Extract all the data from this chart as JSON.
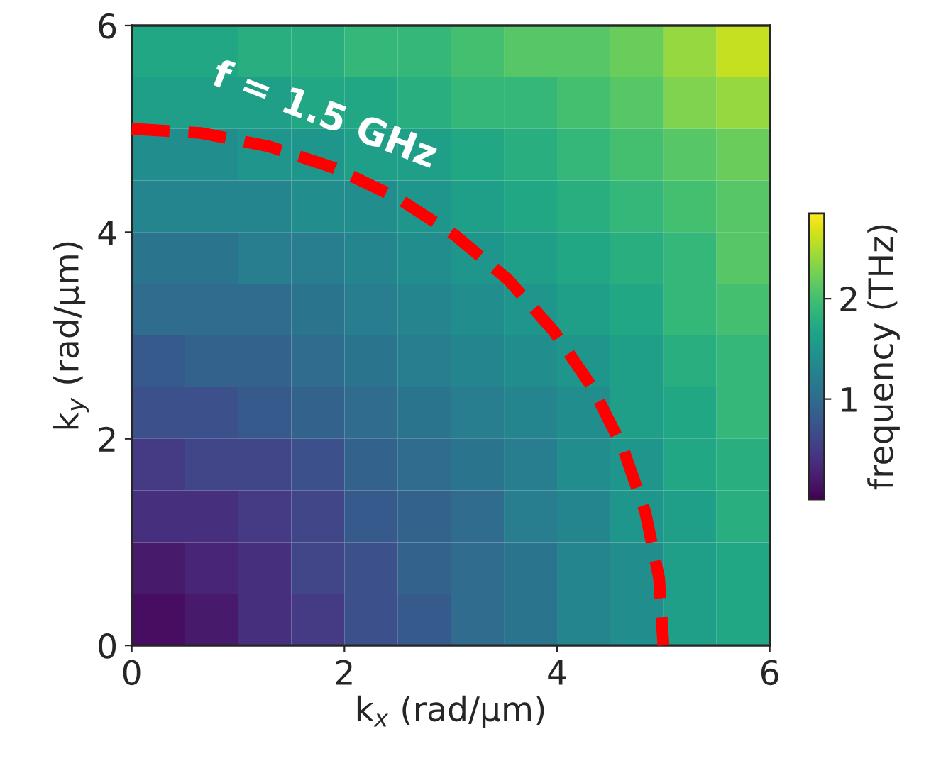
{
  "chart_data": {
    "type": "heatmap",
    "x": [
      0.25,
      0.75,
      1.25,
      1.75,
      2.25,
      2.75,
      3.25,
      3.75,
      4.25,
      4.75,
      5.25,
      5.75
    ],
    "y": [
      5.75,
      5.25,
      4.75,
      4.25,
      3.75,
      3.25,
      2.75,
      2.25,
      1.75,
      1.25,
      0.75,
      0.25
    ],
    "cells": [
      [
        1.7,
        1.7,
        1.8,
        1.8,
        1.9,
        1.9,
        2.0,
        2.1,
        2.1,
        2.2,
        2.4,
        2.6
      ],
      [
        1.6,
        1.6,
        1.6,
        1.7,
        1.7,
        1.8,
        1.9,
        1.9,
        2.0,
        2.1,
        2.3,
        2.4
      ],
      [
        1.4,
        1.4,
        1.5,
        1.5,
        1.6,
        1.6,
        1.7,
        1.8,
        1.9,
        2.0,
        2.1,
        2.2
      ],
      [
        1.3,
        1.3,
        1.3,
        1.4,
        1.4,
        1.5,
        1.6,
        1.7,
        1.8,
        1.9,
        2.0,
        2.1
      ],
      [
        1.1,
        1.1,
        1.2,
        1.2,
        1.3,
        1.4,
        1.5,
        1.6,
        1.7,
        1.8,
        1.9,
        2.1
      ],
      [
        1.0,
        1.0,
        1.0,
        1.1,
        1.2,
        1.3,
        1.4,
        1.5,
        1.6,
        1.7,
        1.9,
        2.0
      ],
      [
        0.8,
        0.9,
        0.9,
        1.0,
        1.1,
        1.2,
        1.3,
        1.4,
        1.5,
        1.6,
        1.8,
        1.9
      ],
      [
        0.7,
        0.7,
        0.8,
        0.9,
        1.0,
        1.1,
        1.2,
        1.3,
        1.4,
        1.6,
        1.7,
        1.9
      ],
      [
        0.5,
        0.6,
        0.6,
        0.7,
        0.9,
        1.0,
        1.1,
        1.2,
        1.4,
        1.5,
        1.7,
        1.8
      ],
      [
        0.4,
        0.4,
        0.5,
        0.6,
        0.8,
        0.9,
        1.0,
        1.2,
        1.3,
        1.5,
        1.6,
        1.8
      ],
      [
        0.2,
        0.3,
        0.4,
        0.6,
        0.7,
        0.9,
        1.0,
        1.1,
        1.3,
        1.4,
        1.6,
        1.7
      ],
      [
        0.1,
        0.2,
        0.4,
        0.5,
        0.7,
        0.8,
        1.0,
        1.1,
        1.3,
        1.4,
        1.6,
        1.7
      ]
    ],
    "clim": [
      0,
      2.85
    ],
    "cticks": [
      1,
      2
    ],
    "clabel": "frequency (THz)",
    "xlabel": "k$_{x}$ (rad/μm)",
    "ylabel": "k$_{y}$ (rad/μm)",
    "xlim": [
      0,
      6
    ],
    "ylim": [
      0,
      6
    ],
    "xticks": [
      0,
      2,
      4,
      6
    ],
    "yticks": [
      0,
      2,
      4,
      6
    ],
    "grid": false,
    "series": [
      {
        "type": "line",
        "color": "#ff0000",
        "line_style": "dashed",
        "x": [
          0,
          0.65,
          1.29,
          1.91,
          2.5,
          3.04,
          3.54,
          3.97,
          4.33,
          4.62,
          4.83,
          4.96,
          5
        ],
        "values": [
          5,
          4.96,
          4.83,
          4.62,
          4.33,
          3.97,
          3.54,
          3.04,
          2.5,
          1.91,
          1.29,
          0.65,
          0
        ]
      }
    ],
    "annotations": [
      {
        "text": "f = 1.5 GHz",
        "x": 1.7,
        "y": 4.7
      }
    ]
  }
}
